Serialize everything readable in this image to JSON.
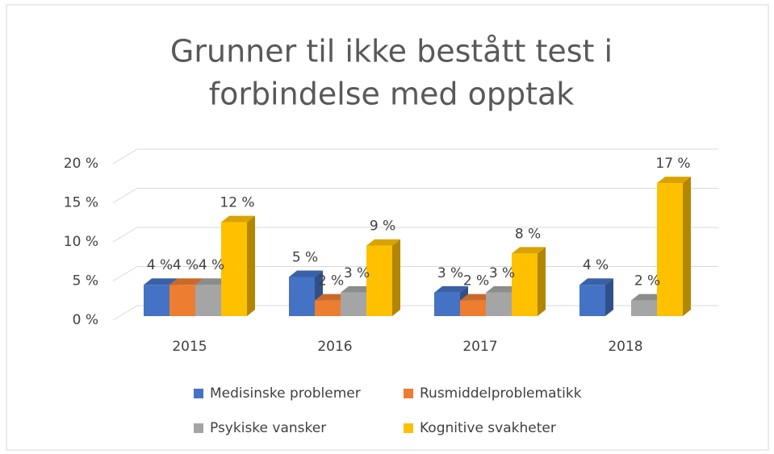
{
  "chart_data": {
    "type": "bar3d",
    "title": [
      "Grunner til ikke bestått test i",
      "forbindelse med opptak"
    ],
    "categories": [
      "2015",
      "2016",
      "2017",
      "2018"
    ],
    "series": [
      {
        "name": "Medisinske problemer",
        "color": "#4472c4",
        "values": [
          4,
          5,
          3,
          4
        ],
        "value_labels": [
          "4 %",
          "5 %",
          "3 %",
          "4 %"
        ]
      },
      {
        "name": "Rusmiddelproblematikk",
        "color": "#ed7d31",
        "values": [
          4,
          2,
          2,
          null
        ],
        "value_labels": [
          "4 %",
          "2 %",
          "2 %",
          null
        ]
      },
      {
        "name": "Psykiske vansker",
        "color": "#a5a5a5",
        "values": [
          4,
          3,
          3,
          2
        ],
        "value_labels": [
          "4 %",
          "3 %",
          "3 %",
          "2 %"
        ]
      },
      {
        "name": "Kognitive svakheter",
        "color": "#ffc000",
        "values": [
          12,
          9,
          8,
          17
        ],
        "value_labels": [
          "12 %",
          "9 %",
          "8 %",
          "17 %"
        ]
      }
    ],
    "ylim": [
      0,
      20
    ],
    "yticks": [
      {
        "value": 0,
        "label": "0 %"
      },
      {
        "value": 5,
        "label": "5 %"
      },
      {
        "value": 10,
        "label": "10 %"
      },
      {
        "value": 15,
        "label": "15 %"
      },
      {
        "value": 20,
        "label": "20 %"
      }
    ],
    "grid": true,
    "legend": "bottom"
  }
}
